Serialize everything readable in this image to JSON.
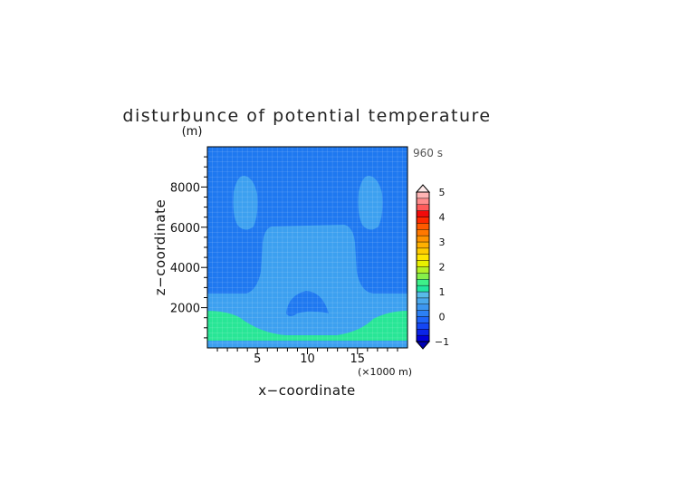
{
  "chart_data": {
    "type": "heatmap",
    "title": "disturbunce of potential temperature",
    "ylabel": "z−coordinate",
    "yunit": "(m)",
    "xlabel": "x−coordinate",
    "xunit": "(×1000 m)",
    "time_label": "960 s",
    "xlim": [
      0,
      20
    ],
    "ylim": [
      0,
      10000
    ],
    "xticks": [
      5,
      10,
      15
    ],
    "yticks": [
      2000,
      4000,
      6000,
      8000
    ],
    "grid": true,
    "colorbar": {
      "min": -1,
      "max": 5,
      "step": 0.25,
      "tick_values": [
        -1,
        0,
        1,
        2,
        3,
        4,
        5
      ],
      "tick_labels": [
        "−1",
        "0",
        "1",
        "2",
        "3",
        "4",
        "5"
      ],
      "colors": [
        "#0000d8",
        "#0a24e8",
        "#1446f4",
        "#1e64f8",
        "#2c80f4",
        "#3c96f0",
        "#4aa8ec",
        "#58bae8",
        "#22e6a0",
        "#3ef08a",
        "#86f04a",
        "#b4f028",
        "#e8f000",
        "#ffe600",
        "#ffcc00",
        "#ffb000",
        "#ff9400",
        "#ff7800",
        "#ff5a00",
        "#ff2a00",
        "#f20a0a",
        "#ff5a5a",
        "#ff8c8c",
        "#ffb4b4"
      ]
    },
    "regions": {
      "background": {
        "level": -0.25,
        "color": "#1e78f0"
      },
      "lower_layer": {
        "level": 0.25,
        "color": "#3ca0f0"
      },
      "near_surface": {
        "level": 1.0,
        "color": "#28e696"
      },
      "central_plume": {
        "level": 0.25,
        "color": "#3ca0f0"
      },
      "upper_cells": {
        "level": 0.25,
        "color": "#3ca0f0"
      },
      "bottom_cell": {
        "level": -0.25,
        "color": "#1e78f0"
      },
      "surface_strip": {
        "level": 0.25,
        "color": "#3ca0f0"
      }
    }
  }
}
